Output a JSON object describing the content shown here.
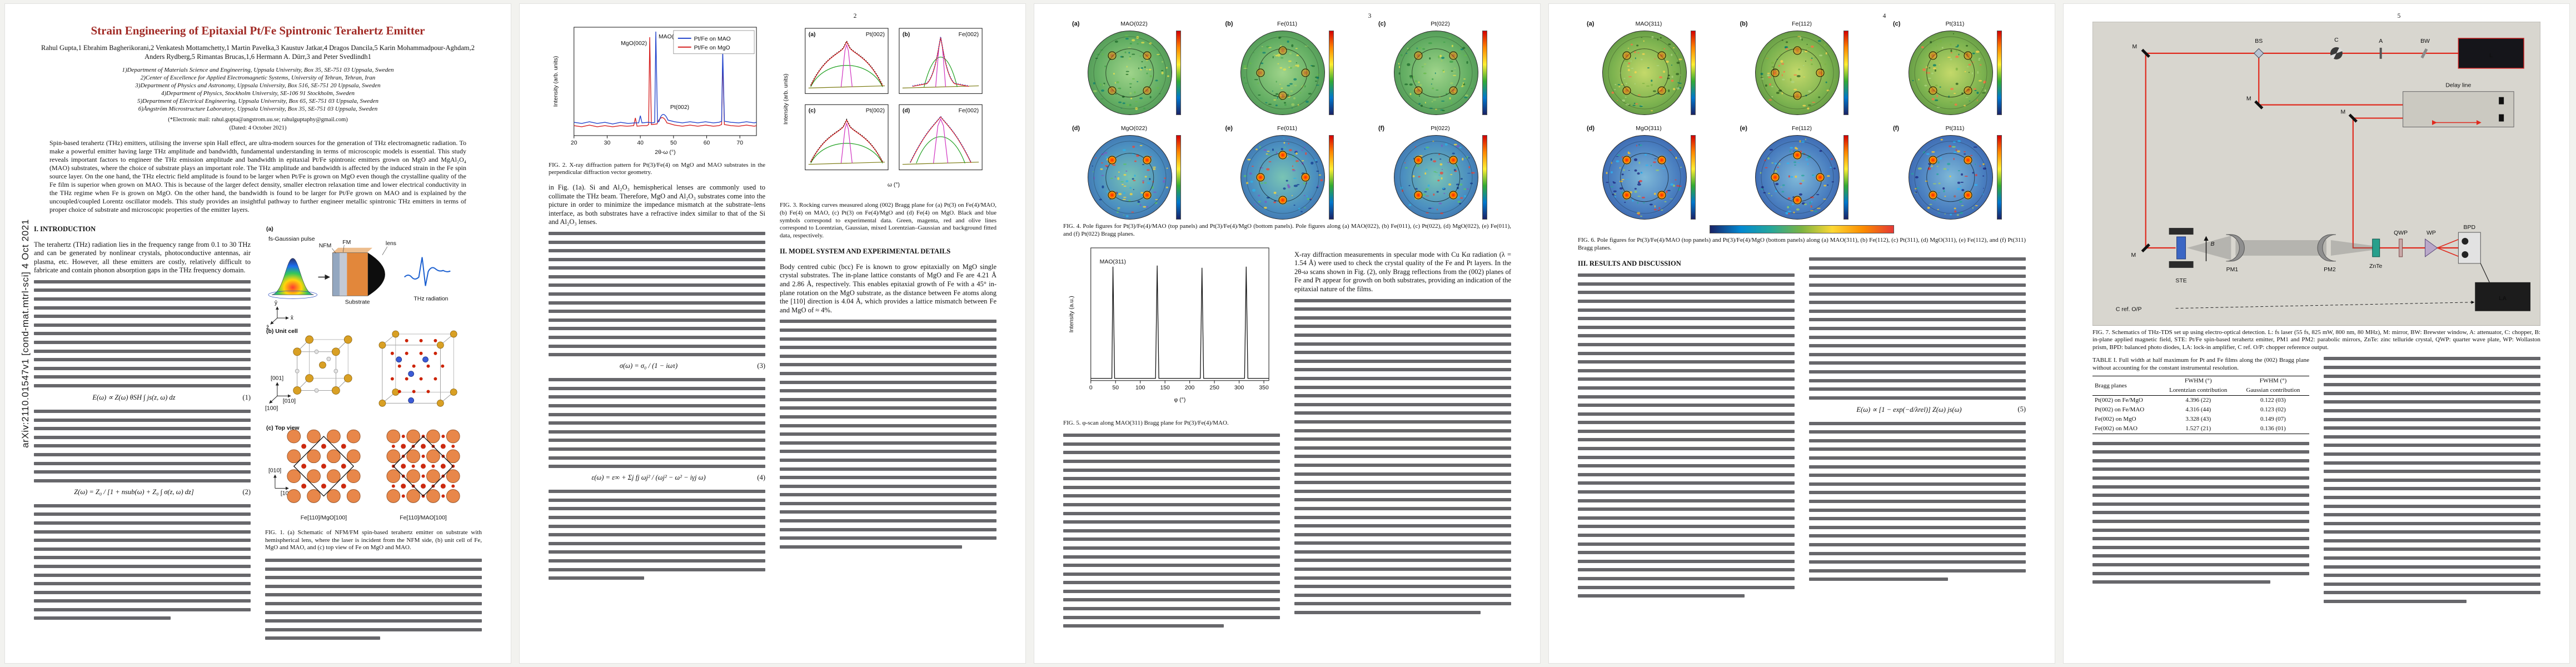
{
  "meta": {
    "arxiv_stamp": "arXiv:2110.01547v1  [cond-mat.mtrl-sci]  4 Oct 2021",
    "page_numbers": [
      "2",
      "3",
      "4",
      "5"
    ]
  },
  "colors": {
    "title_red": "#a12a25",
    "xrd_mao_blue": "#2344cc",
    "xrd_mgo_red": "#d62222",
    "fit_lorentzian_green": "#1fa01f",
    "fit_gaussian_magenta": "#d030c0",
    "fit_total_red": "#e02020",
    "fit_background_olive": "#7a7a10",
    "beam_red": "#e02a1e",
    "thz_blue": "#1a5fd0",
    "substrate_orange": "#e2873b"
  },
  "page1": {
    "title": "Strain Engineering of Epitaxial Pt/Fe Spintronic Terahertz Emitter",
    "authors": "Rahul Gupta,1 Ebrahim Bagherikorani,2 Venkatesh Mottamchetty,1 Martin Pavelka,3 Kaustuv Jatkar,4 Dragos Dancila,5 Karin Mohammadpour-Aghdam,2 Anders Rydberg,5 Rimantas Brucas,1,6 Hermann A. Dürr,3 and Peter Svedlindh1",
    "affiliations": [
      "1)Department of Materials Science and Engineering, Uppsala University, Box 35, SE-751 03 Uppsala, Sweden",
      "2)Center of Excellence for Applied Electromagnetic Systems, University of Tehran, Tehran, Iran",
      "3)Department of Physics and Astronomy, Uppsala University, Box 516, SE-751 20 Uppsala, Sweden",
      "4)Department of Physics, Stockholm University, SE-106 91 Stockholm, Sweden",
      "5)Department of Electrical Engineering, Uppsala University, Box 65, SE-751 03 Uppsala, Sweden",
      "6)Ångström Microstructure Laboratory, Uppsala University, Box 35, SE-751 03 Uppsala, Sweden"
    ],
    "email_line": "(*Electronic mail: rahul.gupta@angstrom.uu.se; rahulguptaphy@gmail.com)",
    "dated_line": "(Dated: 4 October 2021)",
    "abstract": "Spin-based terahertz (THz) emitters, utilising the inverse spin Hall effect, are ultra-modern sources for the generation of THz electromagnetic radiation. To make a powerful emitter having large THz amplitude and bandwidth, fundamental understanding in terms of microscopic models is essential. This study reveals important factors to engineer the THz emission amplitude and bandwidth in epitaxial Pt/Fe spintronic emitters grown on MgO and MgAl₂O₄ (MAO) substrates, where the choice of substrate plays an important role. The THz amplitude and bandwidth is affected by the induced strain in the Fe spin source layer. On the one hand, the THz electric field amplitude is found to be larger when Pt/Fe is grown on MgO even though the crystalline quality of the Fe film is superior when grown on MAO. This is because of the larger defect density, smaller electron relaxation time and lower electrical conductivity in the THz regime when Fe is grown on MgO. On the other hand, the bandwidth is found to be larger for Pt/Fe grown on MAO and is explained by the uncoupled/coupled Lorentz oscillator models. This study provides an insightful pathway to further engineer metallic spintronic THz emitters in terms of proper choice of substrate and microscopic properties of the emitter layers.",
    "section1_heading": "I.   INTRODUCTION",
    "intro_opener": "The terahertz (THz) radiation lies in the frequency range from 0.1 to 30 THz and can be generated by nonlinear crystals, photoconductive antennas, air plasma, etc. However, all these emitters are costly, relatively difficult to fabricate and contain phonon absorption gaps in the THz frequency domain.",
    "equations": [
      {
        "body": "E(ω) ∝ Z(ω) θSH ∫ js(z, ω) dz",
        "num": "(1)"
      },
      {
        "body": "Z(ω) = Z₀ / [1 + nsub(ω) + Z₀ ∫ σ(z, ω) dz]",
        "num": "(2)"
      }
    ],
    "fig1": {
      "panel_a_label": "(a)",
      "pulse_label": "fs-Gaussian pulse",
      "nfm_label": "NFM",
      "fm_label": "FM",
      "substrate_label": "Substrate",
      "lens_label": "lens",
      "thz_label": "THz radiation",
      "axes_a": [
        "ŷ",
        "x̂",
        "ẑ"
      ],
      "panel_b_label": "(b) Unit cell",
      "axes_b": [
        "[001]",
        "[010]",
        "[100]"
      ],
      "panel_c_label": "(c) Top view",
      "axes_c": [
        "[010]",
        "[100]"
      ],
      "lattice_left_label": "Fe[110]/MgO[100]",
      "lattice_right_label": "Fe[110]/MAO[100]",
      "caption": "FIG. 1. (a) Schematic of NFM/FM spin-based terahertz emitter on substrate with hemispherical lens, where the laser is incident from the NFM side, (b) unit cell of Fe, MgO and MAO, and (c) top view of Fe on MgO and MAO."
    }
  },
  "page2": {
    "left_opener": "in Fig. (1a). Si and Al₂O₃ hemispherical lenses are commonly used to collimate the THz beam. Therefore, MgO and Al₂O₃ substrates come into the picture in order to minimize the impedance mismatch at the substrate–lens interface, as both substrates have a refractive index similar to that of the Si and Al₂O₃ lenses.",
    "equations": [
      {
        "body": "σ(ω) = σ₀ / (1 − iωτ)",
        "num": "(3)"
      },
      {
        "body": "ε(ω) = ε∞ + Σj fj ωj² / (ωj² − ω² − iγj ω)",
        "num": "(4)"
      }
    ],
    "fig2_caption": "FIG. 2. X-ray diffraction pattern for Pt(3)/Fe(4) on MgO and MAO substrates in the perpendicular diffraction vector geometry.",
    "fig3_caption": "FIG. 3. Rocking curves measured along (002) Bragg plane for (a) Pt(3) on Fe(4)/MAO, (b) Fe(4) on MAO, (c) Pt(3) on Fe(4)/MgO and (d) Fe(4) on MgO. Black and blue symbols correspond to experimental data. Green, magenta, red and olive lines correspond to Lorentzian, Gaussian, mixed Lorentzian–Gaussian and background fitted data, respectively.",
    "section2_heading": "II.   MODEL SYSTEM AND EXPERIMENTAL DETAILS",
    "sec2_opener": "Body centred cubic (bcc) Fe is known to grow epitaxially on MgO single crystal substrates. The in-plane lattice constants of MgO and Fe are 4.21 Å and 2.86 Å, respectively. This enables epitaxial growth of Fe with a 45° in-plane rotation on the MgO substrate, as the distance between Fe atoms along the [110] direction is 4.04 Å, which provides a lattice mismatch between Fe and MgO of ≈ 4%."
  },
  "page3": {
    "fig4": {
      "panels": [
        {
          "letter": "(a)",
          "plane": "MAO(022)"
        },
        {
          "letter": "(b)",
          "plane": "Fe(011)"
        },
        {
          "letter": "(c)",
          "plane": "Pt(022)"
        },
        {
          "letter": "(d)",
          "plane": "MgO(022)"
        },
        {
          "letter": "(e)",
          "plane": "Fe(011)"
        },
        {
          "letter": "(f)",
          "plane": "Pt(022)"
        }
      ],
      "caption": "FIG. 4. Pole figures for Pt(3)/Fe(4)/MAO (top panels) and Pt(3)/Fe(4)/MgO (bottom panels). Pole figures along (a) MAO(022), (b) Fe(011), (c) Pt(022), (d) MgO(022), (e) Fe(011), and (f) Pt(022) Bragg planes."
    },
    "fig5_caption": "FIG. 5. φ-scan along MAO(311) Bragg plane for Pt(3)/Fe(4)/MAO.",
    "right_opener": "X-ray diffraction measurements in specular mode with Cu Kα radiation (λ = 1.54 Å) were used to check the crystal quality of the Fe and Pt layers. In the 2θ-ω scans shown in Fig. (2), only Bragg reflections from the (002) planes of Fe and Pt appear for growth on both substrates, providing an indication of the epitaxial nature of the films."
  },
  "page4": {
    "fig6": {
      "panels": [
        {
          "letter": "(a)",
          "plane": "MAO(311)"
        },
        {
          "letter": "(b)",
          "plane": "Fe(112)"
        },
        {
          "letter": "(c)",
          "plane": "Pt(311)"
        },
        {
          "letter": "(d)",
          "plane": "MgO(311)"
        },
        {
          "letter": "(e)",
          "plane": "Fe(112)"
        },
        {
          "letter": "(f)",
          "plane": "Pt(311)"
        }
      ],
      "caption": "FIG. 6. Pole figures for Pt(3)/Fe(4)/MAO (top panels) and Pt(3)/Fe(4)/MgO (bottom panels) along (a) MAO(311), (b) Fe(112), (c) Pt(311), (d) MgO(311), (e) Fe(112), and (f) Pt(311) Bragg planes."
    },
    "section3_heading": "III.   RESULTS AND DISCUSSION",
    "equations": [
      {
        "body": "E(ω) ∝ [1 − exp(−d/λrel)] Z(ω) js(ω)",
        "num": "(5)"
      }
    ]
  },
  "page5": {
    "fig7": {
      "labels": {
        "laser": "L",
        "mirror": "M",
        "brewster_window": "BW",
        "attenuator": "A",
        "chopper": "C",
        "beam_splitter": "BS",
        "delay_line": "Delay line",
        "ste": "STE",
        "field": "B",
        "pm1": "PM1",
        "pm2": "PM2",
        "znte": "ZnTe",
        "qwp": "QWP",
        "wp": "WP",
        "bpd": "BPD",
        "lock_in": "LA",
        "chopper_ref": "C ref. O/P"
      },
      "caption": "FIG. 7. Schematics of THz-TDS set up using electro-optical detection. L: fs laser (55 fs, 825 mW, 800 nm, 80 MHz), M: mirror, BW: Brewster window, A: attenuator, C: chopper, B: in-plane applied magnetic field, STE: Pt/Fe spin-based terahertz emitter, PM1 and PM2: parabolic mirrors, ZnTe: zinc telluride crystal, QWP: quarter wave plate, WP: Wollaston prism, BPD: balanced photo diodes, LA: lock-in amplifier, C ref. O/P: chopper reference output."
    },
    "table1": {
      "caption": "TABLE I. Full width at half maximum for Pt and Fe films along the (002) Bragg plane without accounting for the constant instrumental resolution.",
      "col1_header": "Bragg planes",
      "fwhm_header": "FWHM (°)",
      "col2_sub": "Lorentzian contribution",
      "col3_sub": "Gaussian contribution",
      "rows": [
        [
          "Pt(002) on Fe/MgO",
          "4.396 (22)",
          "0.122 (03)"
        ],
        [
          "Pt(002) on Fe/MAO",
          "4.316 (44)",
          "0.123 (02)"
        ],
        [
          "Fe(002) on MgO",
          "3.328 (43)",
          "0.149 (07)"
        ],
        [
          "Fe(002) on MAO",
          "1.527 (21)",
          "0.136 (01)"
        ]
      ]
    }
  },
  "chart_data": [
    {
      "id": "fig2_xrd",
      "type": "line",
      "title": "X-ray diffraction pattern (2θ-ω scan) for Pt(3)/Fe(4) on MgO and MAO",
      "xlabel": "2θ-ω (°)",
      "ylabel": "Intensity (arb. units)",
      "xlim": [
        20,
        75
      ],
      "yscale": "log",
      "xticks": [
        20,
        30,
        40,
        50,
        60,
        70
      ],
      "legend_position": "top-right",
      "series": [
        {
          "name": "Pt/Fe on MAO",
          "color": "#2344cc",
          "peaks": [
            {
              "x": 44.8,
              "label": "MAO(004)",
              "rel_intensity": 1.0
            },
            {
              "x": 46.3,
              "label": "Pt(002)",
              "rel_intensity": 0.15
            },
            {
              "x": 64.9,
              "label": "Fe(002)",
              "rel_intensity": 0.55
            }
          ]
        },
        {
          "name": "Pt/Fe on MgO",
          "color": "#d62222",
          "peaks": [
            {
              "x": 42.9,
              "label": "MgO(002)",
              "rel_intensity": 1.0
            },
            {
              "x": 46.3,
              "label": "Pt(002)",
              "rel_intensity": 0.18
            },
            {
              "x": 64.9,
              "label": "Fe(002)",
              "rel_intensity": 0.45
            }
          ]
        }
      ]
    },
    {
      "id": "fig3_rocking_curves",
      "type": "line",
      "title": "Rocking curves along (002) Bragg plane",
      "xlabel": "ω (°)",
      "ylabel": "Intensity (arb. units)",
      "panels": [
        {
          "label": "(a)",
          "plane": "Pt(002)",
          "sample": "Pt(3) on Fe(4)/MAO",
          "fwhm_deg": 4.32
        },
        {
          "label": "(b)",
          "plane": "Fe(002)",
          "sample": "Fe(4) on MAO",
          "fwhm_deg": 1.53
        },
        {
          "label": "(c)",
          "plane": "Pt(002)",
          "sample": "Pt(3) on Fe(4)/MgO",
          "fwhm_deg": 4.4
        },
        {
          "label": "(d)",
          "plane": "Fe(002)",
          "sample": "Fe(4) on MgO",
          "fwhm_deg": 3.33
        }
      ]
    },
    {
      "id": "fig5_phi_scan",
      "type": "line",
      "title": "φ-scan along MAO(311) Bragg plane",
      "xlabel": "φ (°)",
      "ylabel": "Intensity (a.u.)",
      "xticks": [
        0,
        50,
        100,
        150,
        200,
        250,
        300,
        350
      ],
      "annotation": "MAO(311)",
      "peak_positions_deg": [
        45,
        135,
        225,
        315
      ]
    },
    {
      "id": "fig4_fig6_pole_figures",
      "type": "heatmap",
      "title": "Pole figures, Pt(3)/Fe(4)/MAO (top rows) and Pt(3)/Fe(4)/MgO (bottom rows)",
      "notes": "Four-fold symmetric pole spots; substrate and Pt poles along diagonals, Fe poles rotated 45°"
    }
  ]
}
